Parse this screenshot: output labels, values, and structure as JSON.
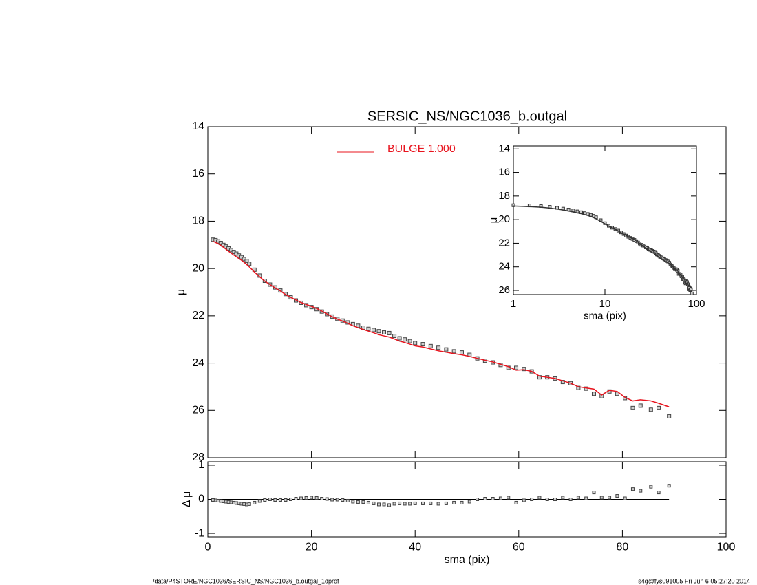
{
  "footer_left": "/data/P4STORE/NGC1036/SERSIC_NS/NGC1036_b.outgal_1dprof",
  "footer_right": "s4g@fys091005  Fri Jun  6 05:27:20 2014",
  "chart_data": [
    {
      "type": "line",
      "title": "SERSIC_NS/NGC1036_b.outgal",
      "ylabel": "μ",
      "xlim": [
        0,
        100
      ],
      "xticks": [
        0,
        20,
        40,
        60,
        80,
        100
      ],
      "ylim": [
        28,
        14
      ],
      "yticks": [
        14,
        16,
        18,
        20,
        22,
        24,
        26,
        28
      ],
      "x": [
        1.0,
        1.5,
        2.0,
        2.5,
        3.0,
        3.5,
        4.0,
        4.5,
        5.0,
        5.5,
        6.0,
        6.5,
        7.0,
        7.5,
        8.0,
        9,
        10,
        11,
        12,
        13,
        14,
        15,
        16,
        17,
        18,
        19,
        20,
        21,
        22,
        23,
        24,
        25,
        26,
        27,
        28,
        29,
        30,
        31,
        32,
        33,
        34,
        35,
        36,
        37,
        38,
        39,
        40,
        41.5,
        43,
        44.5,
        46,
        47.5,
        49,
        50.5,
        52,
        53.5,
        55,
        56.5,
        58,
        59.5,
        61,
        62.5,
        64,
        65.5,
        67,
        68.5,
        70,
        71.5,
        73,
        74.5,
        76,
        77.5,
        79,
        80.5,
        82,
        83.5,
        85.5,
        87,
        89
      ],
      "series": [
        {
          "style": "squares",
          "color": "#444444",
          "values": [
            18.78,
            18.8,
            18.85,
            18.92,
            19.0,
            19.07,
            19.15,
            19.22,
            19.3,
            19.37,
            19.45,
            19.52,
            19.6,
            19.68,
            19.8,
            20.05,
            20.3,
            20.52,
            20.68,
            20.8,
            20.93,
            21.08,
            21.22,
            21.35,
            21.45,
            21.55,
            21.63,
            21.72,
            21.82,
            21.93,
            22.03,
            22.13,
            22.2,
            22.28,
            22.35,
            22.42,
            22.5,
            22.55,
            22.6,
            22.65,
            22.7,
            22.73,
            22.85,
            22.95,
            23.0,
            23.07,
            23.15,
            23.2,
            23.28,
            23.35,
            23.42,
            23.5,
            23.55,
            23.65,
            23.8,
            23.9,
            23.97,
            24.08,
            24.2,
            24.2,
            24.25,
            24.35,
            24.6,
            24.6,
            24.65,
            24.8,
            24.85,
            25.05,
            25.08,
            25.3,
            25.4,
            25.2,
            25.3,
            25.48,
            25.9,
            25.8,
            25.97,
            25.9,
            26.25
          ]
        },
        {
          "style": "line",
          "name": "BULGE  1.000",
          "color": "#e8141e",
          "values": [
            18.85,
            18.9,
            18.95,
            19.02,
            19.1,
            19.18,
            19.27,
            19.35,
            19.43,
            19.5,
            19.58,
            19.65,
            19.74,
            19.83,
            19.93,
            20.15,
            20.35,
            20.54,
            20.68,
            20.82,
            20.95,
            21.1,
            21.22,
            21.33,
            21.44,
            21.52,
            21.6,
            21.69,
            21.8,
            21.92,
            22.04,
            22.14,
            22.22,
            22.32,
            22.42,
            22.5,
            22.58,
            22.65,
            22.72,
            22.8,
            22.85,
            22.9,
            22.98,
            23.07,
            23.13,
            23.2,
            23.27,
            23.32,
            23.4,
            23.48,
            23.54,
            23.6,
            23.65,
            23.72,
            23.8,
            23.88,
            23.95,
            24.05,
            24.15,
            24.3,
            24.28,
            24.35,
            24.55,
            24.6,
            24.65,
            24.75,
            24.85,
            25.0,
            25.05,
            25.1,
            25.35,
            25.15,
            25.2,
            25.45,
            25.6,
            25.55,
            25.6,
            25.7,
            25.85
          ]
        }
      ]
    },
    {
      "type": "line",
      "xlabel": "sma (pix)",
      "ylabel": "Δ μ",
      "xlim": [
        0,
        100
      ],
      "xticks": [
        0,
        20,
        40,
        60,
        80,
        100
      ],
      "ylim": [
        -1.1,
        1.1
      ],
      "yticks": [
        -1,
        0,
        1
      ],
      "reference_line": 0,
      "x": [
        1.0,
        1.5,
        2.0,
        2.5,
        3.0,
        3.5,
        4.0,
        4.5,
        5.0,
        5.5,
        6.0,
        6.5,
        7.0,
        7.5,
        8.0,
        9,
        10,
        11,
        12,
        13,
        14,
        15,
        16,
        17,
        18,
        19,
        20,
        21,
        22,
        23,
        24,
        25,
        26,
        27,
        28,
        29,
        30,
        31,
        32,
        33,
        34,
        35,
        36,
        37,
        38,
        39,
        40,
        41.5,
        43,
        44.5,
        46,
        47.5,
        49,
        50.5,
        52,
        53.5,
        55,
        56.5,
        58,
        59.5,
        61,
        62.5,
        64,
        65.5,
        67,
        68.5,
        70,
        71.5,
        73,
        74.5,
        76,
        77.5,
        79,
        80.5,
        82,
        83.5,
        85.5,
        87,
        89
      ],
      "series": [
        {
          "style": "squares",
          "color": "#444444",
          "values": [
            -0.02,
            -0.03,
            -0.04,
            -0.05,
            -0.06,
            -0.07,
            -0.08,
            -0.09,
            -0.1,
            -0.11,
            -0.12,
            -0.13,
            -0.14,
            -0.15,
            -0.14,
            -0.1,
            -0.05,
            -0.02,
            0,
            -0.02,
            -0.02,
            -0.02,
            0,
            0.02,
            0.03,
            0.04,
            0.05,
            0.04,
            0.02,
            0.01,
            -0.01,
            -0.01,
            -0.02,
            -0.04,
            -0.07,
            -0.08,
            -0.08,
            -0.1,
            -0.12,
            -0.15,
            -0.15,
            -0.17,
            -0.13,
            -0.12,
            -0.13,
            -0.13,
            -0.12,
            -0.12,
            -0.12,
            -0.13,
            -0.12,
            -0.1,
            -0.1,
            -0.07,
            0,
            0.02,
            0.02,
            0.03,
            0.05,
            -0.1,
            -0.03,
            0,
            0.05,
            0,
            0,
            0.05,
            0,
            0.05,
            0.03,
            0.2,
            0.05,
            0.05,
            0.1,
            0.03,
            0.3,
            0.25,
            0.37,
            0.2,
            0.4
          ]
        }
      ]
    },
    {
      "type": "line",
      "xlabel": "sma (pix)",
      "ylabel": "μ",
      "xlog": true,
      "color": "#333333",
      "xlim": [
        1,
        100
      ],
      "xticks": [
        1,
        10,
        100
      ],
      "ylim": [
        26.35,
        13.75
      ],
      "yticks": [
        14,
        16,
        18,
        20,
        22,
        24,
        26
      ]
    }
  ]
}
